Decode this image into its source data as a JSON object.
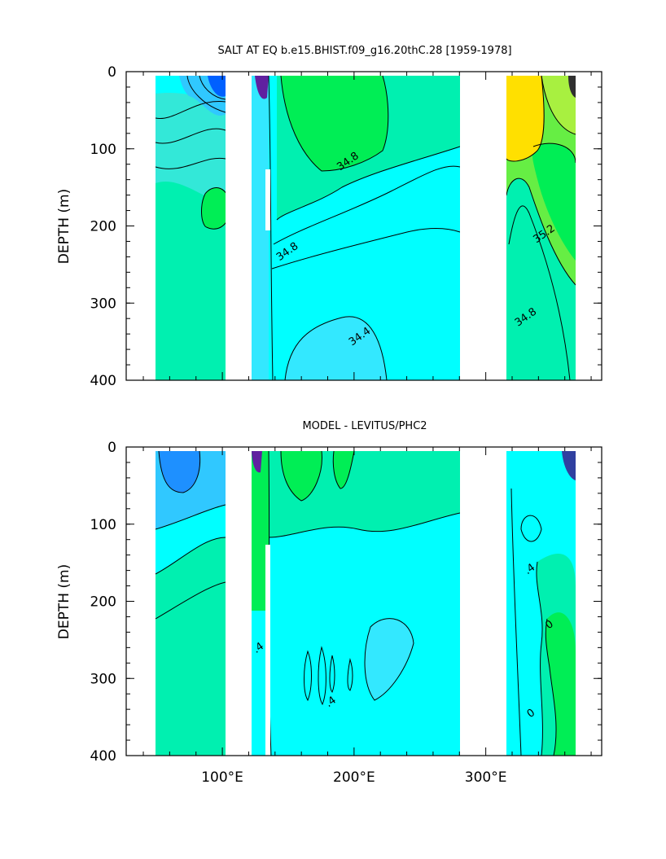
{
  "chart_data": [
    {
      "type": "heatmap",
      "title": "SALT AT EQ b.e15.BHIST.f09_g16.20thC.28 [1959-1978]",
      "ylabel": "DEPTH (m)",
      "xlabel": "",
      "ylim": [
        400,
        0
      ],
      "xlim": [
        27,
        388
      ],
      "y_ticks": [
        "0",
        "100",
        "200",
        "300",
        "400"
      ],
      "y_tick_values": [
        0,
        100,
        200,
        300,
        400
      ],
      "x_tick_values": [
        100,
        200,
        300
      ],
      "land_gaps_lon": [
        [
          97,
          118
        ],
        [
          279,
          315
        ]
      ],
      "contour_labels": [
        {
          "text": "34.8",
          "lon": 196,
          "depth": 118
        },
        {
          "text": "34.8",
          "lon": 150,
          "depth": 235
        },
        {
          "text": "34.4",
          "lon": 205,
          "depth": 345
        },
        {
          "text": "35.2",
          "lon": 345,
          "depth": 212
        },
        {
          "text": "34.8",
          "lon": 331,
          "depth": 320
        }
      ],
      "colors": {
        "cyan": "#00ffff",
        "seafoam": "#00f0b0",
        "green": "#00ee55",
        "blue": "#0060ff",
        "yellow": "#ffe000"
      }
    },
    {
      "type": "heatmap",
      "title": "MODEL - LEVITUS/PHC2",
      "ylabel": "DEPTH (m)",
      "xlabel": "",
      "ylim": [
        400,
        0
      ],
      "xlim": [
        27,
        388
      ],
      "y_ticks": [
        "0",
        "100",
        "200",
        "300",
        "400"
      ],
      "y_tick_values": [
        0,
        100,
        200,
        300,
        400
      ],
      "x_ticks": [
        "100°E",
        "200°E",
        "300°E"
      ],
      "x_tick_values": [
        100,
        200,
        300
      ],
      "land_gaps_lon": [
        [
          97,
          118
        ],
        [
          279,
          315
        ]
      ],
      "contour_labels": [
        {
          "text": ".4",
          "lon": 334,
          "depth": 160
        },
        {
          "text": "0",
          "lon": 349,
          "depth": 232
        },
        {
          "text": ".4",
          "lon": 128,
          "depth": 262
        },
        {
          "text": ".4",
          "lon": 183,
          "depth": 332
        },
        {
          "text": "0",
          "lon": 335,
          "depth": 347
        }
      ],
      "colors": {
        "cyan": "#00ffff",
        "seafoam": "#00f0b0",
        "green": "#00ee55",
        "blue": "#0060ff"
      }
    }
  ]
}
